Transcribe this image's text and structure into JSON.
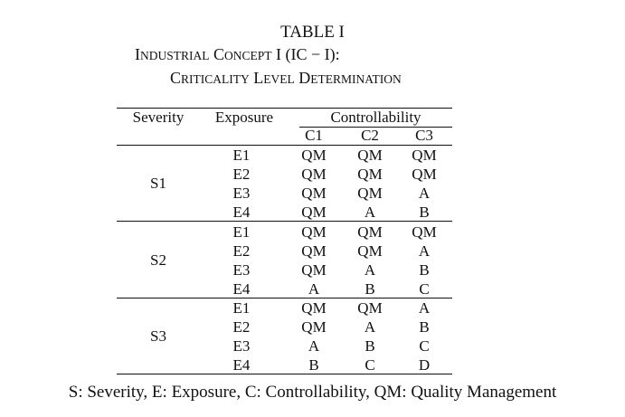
{
  "table_label": "TABLE I",
  "caption": {
    "line1_prefix_big": "I",
    "line1_prefix_small": "ndustrial",
    "line1_c_big": "C",
    "line1_c_small": "oncept",
    "line1_rest": "I (IC − I):",
    "line2_c_big": "C",
    "line2_c_small": "riticality",
    "line2_l_big": "L",
    "line2_l_small": "evel",
    "line2_d_big": "D",
    "line2_d_small": "etermination"
  },
  "headers": {
    "severity": "Severity",
    "exposure": "Exposure",
    "controllability": "Controllability",
    "c1": "C1",
    "c2": "C2",
    "c3": "C3"
  },
  "groups": [
    {
      "severity": "S1",
      "rows": [
        {
          "exposure": "E1",
          "c1": "QM",
          "c2": "QM",
          "c3": "QM"
        },
        {
          "exposure": "E2",
          "c1": "QM",
          "c2": "QM",
          "c3": "QM"
        },
        {
          "exposure": "E3",
          "c1": "QM",
          "c2": "QM",
          "c3": "A"
        },
        {
          "exposure": "E4",
          "c1": "QM",
          "c2": "A",
          "c3": "B"
        }
      ]
    },
    {
      "severity": "S2",
      "rows": [
        {
          "exposure": "E1",
          "c1": "QM",
          "c2": "QM",
          "c3": "QM"
        },
        {
          "exposure": "E2",
          "c1": "QM",
          "c2": "QM",
          "c3": "A"
        },
        {
          "exposure": "E3",
          "c1": "QM",
          "c2": "A",
          "c3": "B"
        },
        {
          "exposure": "E4",
          "c1": "A",
          "c2": "B",
          "c3": "C"
        }
      ]
    },
    {
      "severity": "S3",
      "rows": [
        {
          "exposure": "E1",
          "c1": "QM",
          "c2": "QM",
          "c3": "A"
        },
        {
          "exposure": "E2",
          "c1": "QM",
          "c2": "A",
          "c3": "B"
        },
        {
          "exposure": "E3",
          "c1": "A",
          "c2": "B",
          "c3": "C"
        },
        {
          "exposure": "E4",
          "c1": "B",
          "c2": "C",
          "c3": "D"
        }
      ]
    }
  ],
  "footnote": "S: Severity, E: Exposure, C: Controllability, QM: Quality Management"
}
